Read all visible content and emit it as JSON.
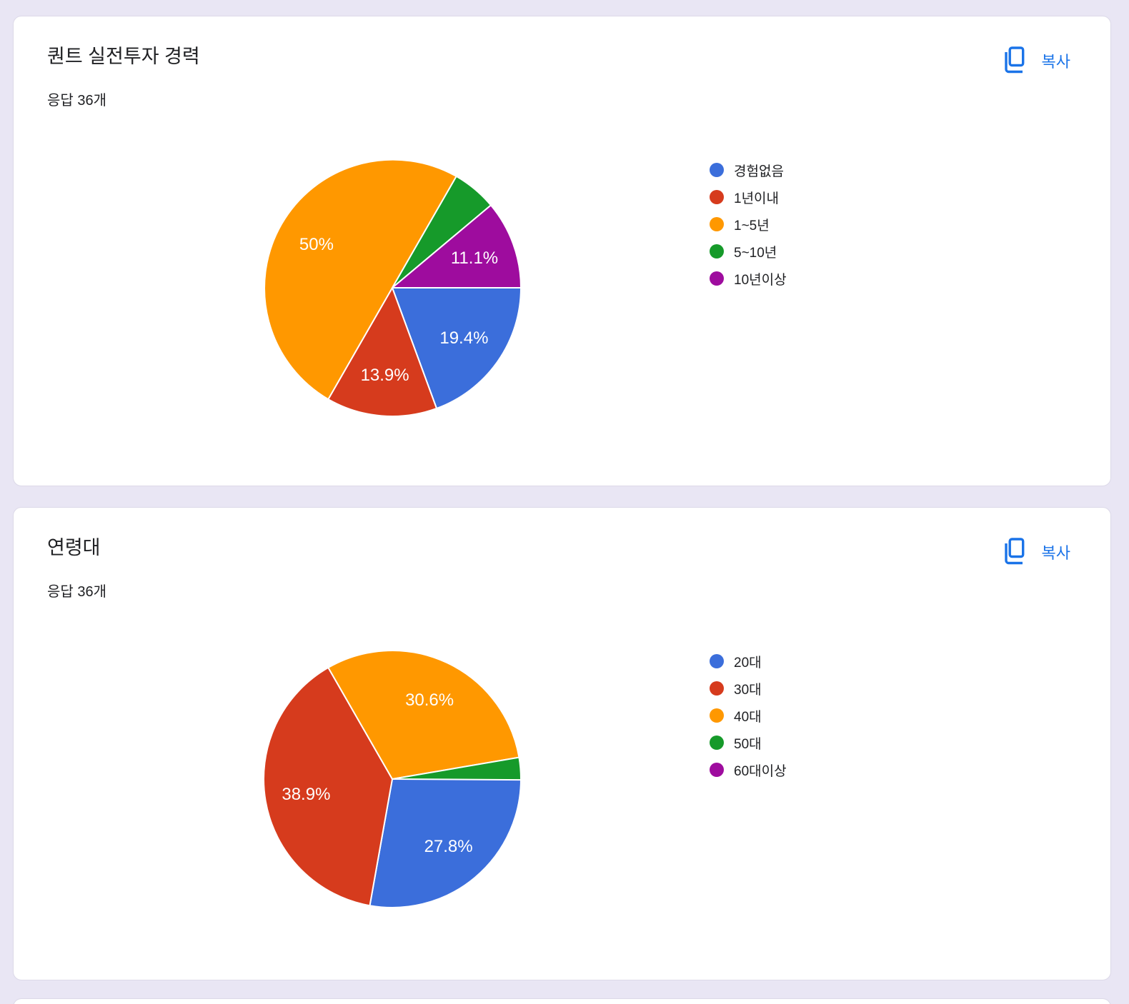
{
  "page": {
    "background": "#e9e6f4",
    "card_background": "#ffffff",
    "accent_color": "#1a73e8"
  },
  "cards": [
    {
      "title": "퀀트 실전투자 경력",
      "subtitle": "응답 36개",
      "copy_label": "복사"
    },
    {
      "title": "연령대",
      "subtitle": "응답 36개",
      "copy_label": "복사"
    }
  ],
  "chart_data": [
    {
      "type": "pie",
      "title": "퀀트 실전투자 경력",
      "subtitle": "응답 36개",
      "legend_position": "right",
      "start_angle_deg": 90,
      "direction": "clockwise",
      "slices": [
        {
          "label": "경험없음",
          "pct": 19.4,
          "color": "#3b6edb",
          "data_label": "19.4%"
        },
        {
          "label": "1년이내",
          "pct": 13.9,
          "color": "#d63b1d",
          "data_label": "13.9%"
        },
        {
          "label": "1~5년",
          "pct": 50.0,
          "color": "#ff9800",
          "data_label": "50%"
        },
        {
          "label": "5~10년",
          "pct": 5.6,
          "color": "#169a2a",
          "data_label": ""
        },
        {
          "label": "10년이상",
          "pct": 11.1,
          "color": "#9e0c9e",
          "data_label": "11.1%"
        }
      ]
    },
    {
      "type": "pie",
      "title": "연령대",
      "subtitle": "응답 36개",
      "legend_position": "right",
      "start_angle_deg": 90,
      "direction": "clockwise",
      "slices": [
        {
          "label": "20대",
          "pct": 27.8,
          "color": "#3b6edb",
          "data_label": "27.8%"
        },
        {
          "label": "30대",
          "pct": 38.9,
          "color": "#d63b1d",
          "data_label": "38.9%"
        },
        {
          "label": "40대",
          "pct": 30.6,
          "color": "#ff9800",
          "data_label": "30.6%"
        },
        {
          "label": "50대",
          "pct": 2.8,
          "color": "#169a2a",
          "data_label": ""
        },
        {
          "label": "60대이상",
          "pct": 0,
          "color": "#9e0c9e",
          "data_label": ""
        }
      ]
    }
  ]
}
